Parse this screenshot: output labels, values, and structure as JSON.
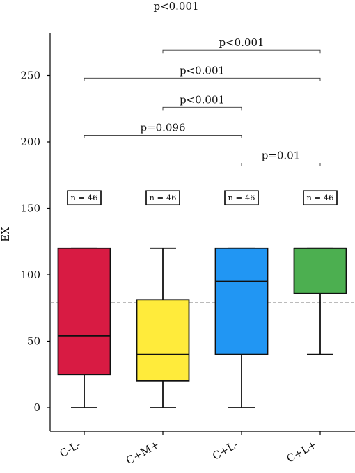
{
  "chart_data": {
    "type": "box",
    "title": "",
    "xlabel": "",
    "ylabel": "EX",
    "ylim": [
      -18,
      282
    ],
    "yticks": [
      0,
      50,
      100,
      150,
      200,
      250
    ],
    "categories": [
      "C-L-",
      "C+M+",
      "C+L-",
      "C+L+"
    ],
    "colors": [
      "#d81b43",
      "#ffeb3b",
      "#2196f3",
      "#4caf50"
    ],
    "boxes": [
      {
        "category": "C-L-",
        "whisker_low": 0,
        "q1": 25,
        "median": 54,
        "q3": 120,
        "whisker_high": 120,
        "n_label": "n = 46"
      },
      {
        "category": "C+M+",
        "whisker_low": 0,
        "q1": 20,
        "median": 40,
        "q3": 81,
        "whisker_high": 120,
        "n_label": "n = 46"
      },
      {
        "category": "C+L-",
        "whisker_low": 0,
        "q1": 40,
        "median": 95,
        "q3": 120,
        "whisker_high": 120,
        "n_label": "n = 46"
      },
      {
        "category": "C+L+",
        "whisker_low": 40,
        "q1": 86,
        "median": 120,
        "q3": 120,
        "whisker_high": 120,
        "n_label": "n = 46"
      }
    ],
    "reference_line": 79,
    "n_label_y": 158,
    "comparisons": [
      {
        "from": 2,
        "to": 3,
        "y": 184,
        "label": "p=0.01"
      },
      {
        "from": 0,
        "to": 2,
        "y": 205,
        "label": "p=0.096"
      },
      {
        "from": 1,
        "to": 2,
        "y": 226,
        "label": "p<0.001"
      },
      {
        "from": 0,
        "to": 3,
        "y": 248,
        "label": "p<0.001"
      },
      {
        "from": 1,
        "to": 3,
        "y": 269,
        "label": "p<0.001"
      }
    ],
    "top_annotation": "p<0.001",
    "grid": false,
    "legend": "none"
  }
}
